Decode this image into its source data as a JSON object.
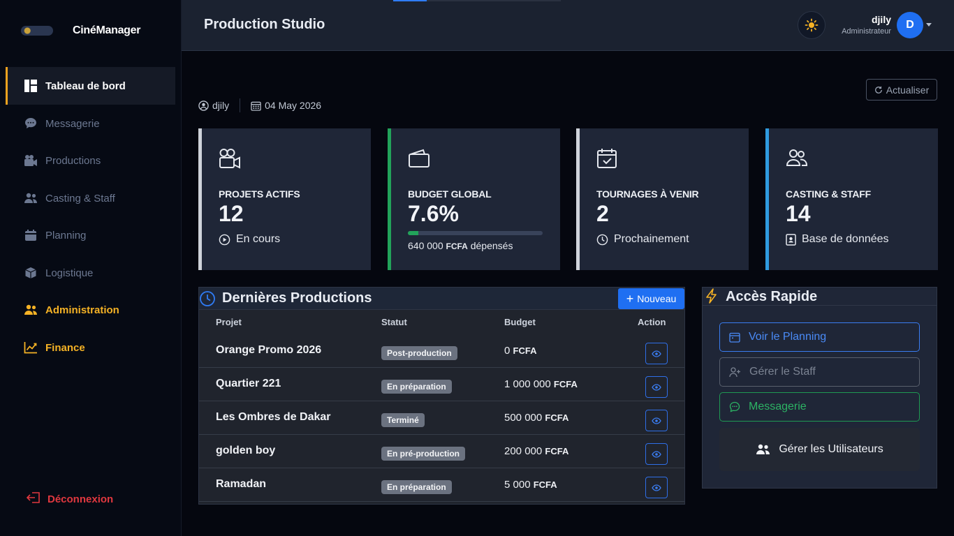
{
  "brand": {
    "name": "CinéManager"
  },
  "sidebar": {
    "items": [
      {
        "label": "Tableau de bord",
        "icon": "dashboard-icon",
        "active": true
      },
      {
        "label": "Messagerie",
        "icon": "chat-icon"
      },
      {
        "label": "Productions",
        "icon": "video-camera-icon"
      },
      {
        "label": "Casting & Staff",
        "icon": "users-icon"
      },
      {
        "label": "Planning",
        "icon": "calendar-icon"
      },
      {
        "label": "Logistique",
        "icon": "box-icon"
      },
      {
        "label": "Administration",
        "icon": "users-gear-icon",
        "highlight": true
      },
      {
        "label": "Finance",
        "icon": "chart-line-icon",
        "highlight": true
      }
    ],
    "logout_label": "Déconnexion"
  },
  "header": {
    "title": "Production Studio",
    "user": {
      "name": "djily",
      "role": "Administrateur",
      "initial": "D"
    }
  },
  "meta": {
    "user": "djily",
    "date": "04 May 2026"
  },
  "refresh_label": "Actualiser",
  "stats": [
    {
      "label": "PROJETS ACTIFS",
      "value": "12",
      "sub": "En cours",
      "accent": "#cfd3da"
    },
    {
      "label": "BUDGET GLOBAL",
      "value": "7.6%",
      "progress": 7.6,
      "spent_amount": "640 000",
      "spent_currency": "FCFA",
      "spent_suffix": "dépensés",
      "accent": "#22a35a"
    },
    {
      "label": "TOURNAGES À VENIR",
      "value": "2",
      "sub": "Prochainement",
      "accent": "#cfd3da"
    },
    {
      "label": "CASTING & STAFF",
      "value": "14",
      "sub": "Base de données",
      "accent": "#2f9be0"
    }
  ],
  "productions": {
    "title": "Dernières Productions",
    "new_label": "Nouveau",
    "columns": [
      "Projet",
      "Statut",
      "Budget",
      "Action"
    ],
    "rows": [
      {
        "name": "Orange Promo 2026",
        "status": "Post-production",
        "amount": "0",
        "currency": "FCFA"
      },
      {
        "name": "Quartier 221",
        "status": "En préparation",
        "amount": "1 000 000",
        "currency": "FCFA"
      },
      {
        "name": "Les Ombres de Dakar",
        "status": "Terminé",
        "amount": "500 000",
        "currency": "FCFA"
      },
      {
        "name": "golden boy",
        "status": "En pré-production",
        "amount": "200 000",
        "currency": "FCFA"
      },
      {
        "name": "Ramadan",
        "status": "En préparation",
        "amount": "5 000",
        "currency": "FCFA"
      }
    ]
  },
  "quick_access": {
    "title": "Accès Rapide",
    "buttons": [
      {
        "label": "Voir le Planning",
        "icon": "calendar-icon"
      },
      {
        "label": "Gérer le Staff",
        "icon": "user-plus-icon"
      },
      {
        "label": "Messagerie",
        "icon": "chat-icon"
      },
      {
        "label": "Gérer les Utilisateurs",
        "icon": "users-icon"
      }
    ]
  },
  "colors": {
    "accent_blue": "#1f6ff2",
    "accent_gold": "#f5b225",
    "danger": "#e0383f",
    "success": "#22a35a"
  }
}
